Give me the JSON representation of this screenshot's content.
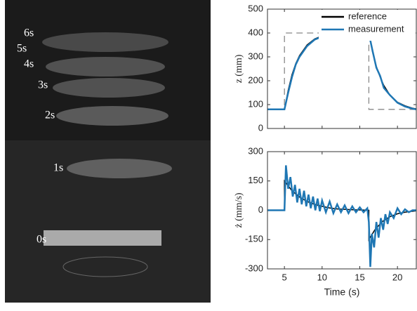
{
  "photo": {
    "labels": [
      "6s",
      "5s",
      "4s",
      "3s",
      "2s",
      "1s",
      "0s"
    ]
  },
  "chart_data": [
    {
      "type": "line",
      "ylabel": "z (mm)",
      "xlim": [
        2.75,
        22.5
      ],
      "xticks": [
        5,
        10,
        15,
        20
      ],
      "ylim": [
        0,
        500
      ],
      "yticks": [
        0,
        100,
        200,
        300,
        400,
        500
      ],
      "legend": "top-right",
      "series": [
        {
          "color": "#888888",
          "dash": true,
          "x": [
            2.75,
            5,
            5,
            16.2,
            16.2,
            22.5
          ],
          "values": [
            80,
            80,
            400,
            400,
            80,
            80
          ]
        },
        {
          "name": "reference",
          "color": "#000000",
          "x": [
            2.75,
            5,
            5.5,
            6,
            6.5,
            7,
            8,
            9,
            10,
            11,
            12,
            13,
            14,
            15,
            16.2,
            16.7,
            17.2,
            17.7,
            18.2,
            19,
            20,
            21,
            22,
            22.5
          ],
          "values": [
            80,
            80,
            160,
            225,
            272,
            305,
            350,
            375,
            388,
            395,
            398,
            399,
            400,
            400,
            400,
            320,
            260,
            215,
            180,
            140,
            110,
            95,
            85,
            82
          ]
        },
        {
          "name": "measurement",
          "color": "#1f77b4",
          "x": [
            2.75,
            5,
            5.5,
            6,
            6.5,
            7,
            8,
            9,
            10,
            11,
            12,
            13,
            14,
            15,
            16.2,
            16.7,
            17.2,
            17.7,
            18.2,
            19,
            20,
            21,
            22,
            22.5
          ],
          "values": [
            80,
            80,
            150,
            215,
            268,
            300,
            345,
            372,
            385,
            392,
            396,
            398,
            402,
            396,
            398,
            325,
            255,
            220,
            170,
            140,
            108,
            92,
            83,
            80
          ]
        }
      ]
    },
    {
      "type": "line",
      "ylabel": "ż (mm/s)",
      "xlabel": "Time (s)",
      "xlim": [
        2.75,
        22.5
      ],
      "xticks": [
        5,
        10,
        15,
        20
      ],
      "ylim": [
        -300,
        300
      ],
      "yticks": [
        -300,
        -150,
        0,
        150,
        300
      ],
      "series": [
        {
          "color": "#000000",
          "x": [
            2.75,
            5,
            5,
            6,
            7,
            8,
            9,
            10,
            11,
            12,
            14,
            16.2,
            16.2,
            17,
            18,
            19,
            20,
            21,
            22.5
          ],
          "values": [
            0,
            0,
            150,
            100,
            68,
            45,
            30,
            20,
            12,
            7,
            3,
            0,
            -150,
            -100,
            -58,
            -33,
            -18,
            -10,
            -3
          ]
        },
        {
          "color": "#1f77b4",
          "x": [
            2.75,
            5,
            5.2,
            5.5,
            5.8,
            6.1,
            6.4,
            6.7,
            7,
            7.3,
            7.6,
            7.9,
            8.2,
            8.5,
            8.8,
            9.1,
            9.4,
            9.7,
            10,
            10.5,
            11,
            11.5,
            12,
            12.5,
            13,
            13.5,
            14,
            14.5,
            15,
            15.5,
            16,
            16.2,
            16.4,
            16.6,
            16.9,
            17.2,
            17.5,
            17.8,
            18.1,
            18.4,
            18.7,
            19,
            19.5,
            20,
            20.5,
            21,
            21.5,
            22,
            22.5
          ],
          "values": [
            0,
            0,
            230,
            110,
            170,
            70,
            130,
            40,
            110,
            30,
            100,
            20,
            80,
            10,
            70,
            0,
            60,
            -5,
            50,
            -10,
            45,
            -15,
            30,
            -10,
            25,
            -15,
            20,
            -10,
            15,
            -10,
            10,
            -60,
            -290,
            -120,
            -190,
            -60,
            -140,
            -40,
            -100,
            -20,
            -70,
            -10,
            -40,
            10,
            -20,
            5,
            -10,
            0,
            0
          ]
        }
      ]
    }
  ]
}
